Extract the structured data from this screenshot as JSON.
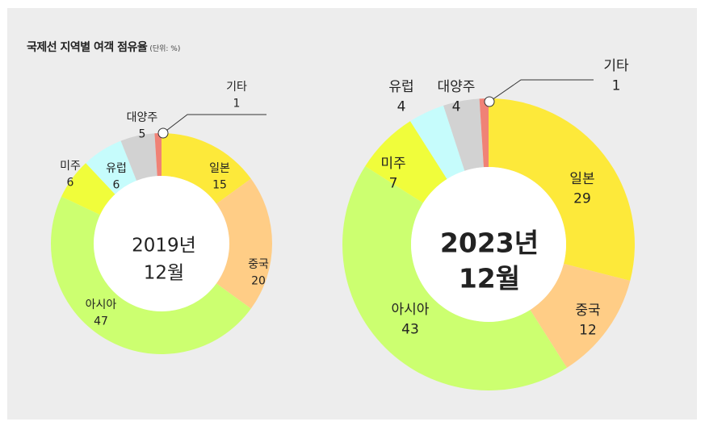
{
  "title": "국제선 지역별 여객 점유율",
  "unit_label": "(단위: %)",
  "chart_data": [
    {
      "type": "pie",
      "center_label_line1": "2019년",
      "center_label_line2": "12월",
      "slices": [
        {
          "label": "일본",
          "value": 15,
          "color": "#fde93a"
        },
        {
          "label": "중국",
          "value": 20,
          "color": "#ffcd86"
        },
        {
          "label": "아시아",
          "value": 47,
          "color": "#ccff70"
        },
        {
          "label": "미주",
          "value": 6,
          "color": "#f0fd3b"
        },
        {
          "label": "유럽",
          "value": 6,
          "color": "#c6fcfc"
        },
        {
          "label": "대양주",
          "value": 5,
          "color": "#d2d2d2"
        },
        {
          "label": "기타",
          "value": 1,
          "color": "#f08276"
        }
      ]
    },
    {
      "type": "pie",
      "center_label_line1": "2023년",
      "center_label_line2": "12월",
      "slices": [
        {
          "label": "일본",
          "value": 29,
          "color": "#fde93a"
        },
        {
          "label": "중국",
          "value": 12,
          "color": "#ffcd86"
        },
        {
          "label": "아시아",
          "value": 43,
          "color": "#ccff70"
        },
        {
          "label": "미주",
          "value": 7,
          "color": "#f0fd3b"
        },
        {
          "label": "유럽",
          "value": 4,
          "color": "#c6fcfc"
        },
        {
          "label": "대양주",
          "value": 4,
          "color": "#d2d2d2"
        },
        {
          "label": "기타",
          "value": 1,
          "color": "#f08276"
        }
      ]
    }
  ]
}
